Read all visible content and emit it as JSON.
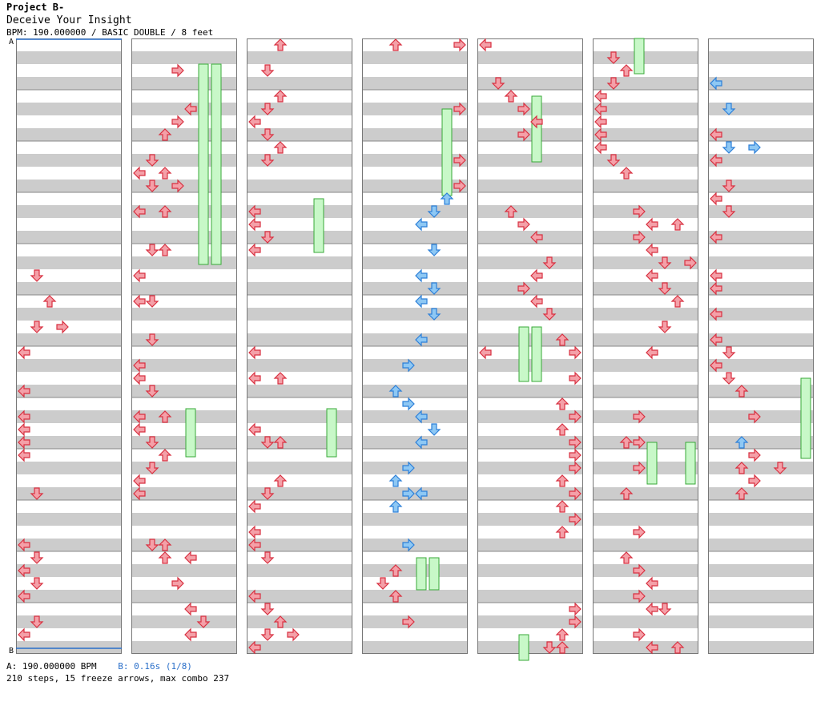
{
  "header": {
    "artist": "Project B-",
    "title": "Deceive Your Insight",
    "info": "BPM: 190.000000 / BASIC DOUBLE / 8 feet"
  },
  "markers": {
    "a": "A",
    "b": "B"
  },
  "footer": {
    "bpm_a": "A: 190.000000 BPM",
    "bpm_b": "B: 0.16s (1/8)",
    "stats": "210 steps, 15 freeze arrows, max combo 237"
  },
  "colors": {
    "arrow_red": "#f4a0a8",
    "arrow_red_outline": "#d83040",
    "arrow_blue": "#8ec8f4",
    "arrow_blue_outline": "#2c7fd8",
    "freeze_fill": "#c8f8c8",
    "freeze_outline": "#38a838",
    "stripe_gray": "#cccccc",
    "marker_line": "#2a6fc9"
  }
}
